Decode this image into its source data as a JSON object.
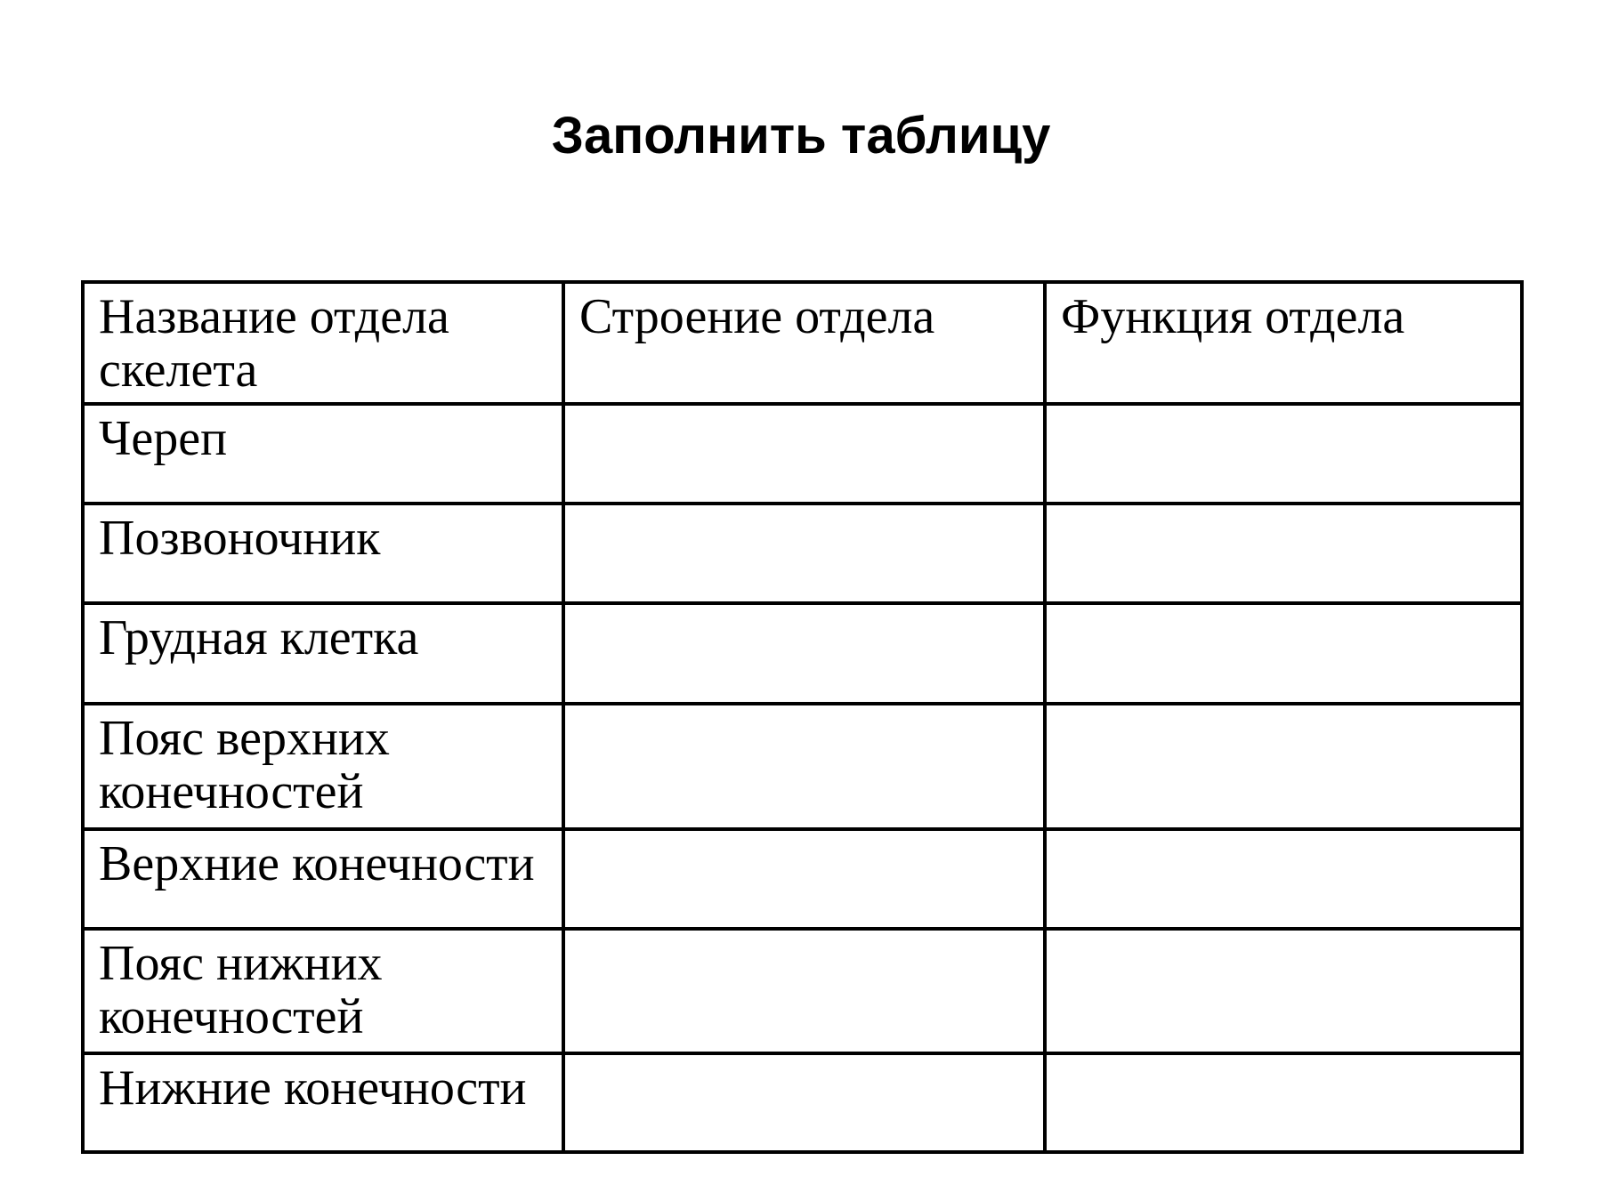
{
  "slide": {
    "title": "Заполнить таблицу"
  },
  "table": {
    "columns": [
      {
        "header": "Название отдела скелета"
      },
      {
        "header": "Строение отдела"
      },
      {
        "header": "Функция отдела"
      }
    ],
    "rows": [
      {
        "name": "Череп",
        "structure": "",
        "function": ""
      },
      {
        "name": "Позвоночник",
        "structure": "",
        "function": ""
      },
      {
        "name": "Грудная клетка",
        "structure": "",
        "function": ""
      },
      {
        "name": "Пояс верхних конечностей",
        "structure": "",
        "function": ""
      },
      {
        "name": "Верхние конечности",
        "structure": "",
        "function": ""
      },
      {
        "name": "Пояс нижних конечностей",
        "structure": "",
        "function": ""
      },
      {
        "name": "Нижние конечности",
        "structure": "",
        "function": ""
      }
    ]
  },
  "colors": {
    "background": "#ffffff",
    "text": "#000000",
    "border": "#000000"
  }
}
